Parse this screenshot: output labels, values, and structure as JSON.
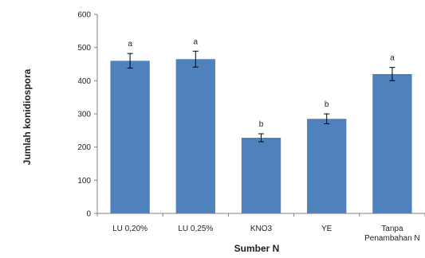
{
  "chart_data": {
    "type": "bar",
    "title": "",
    "xlabel": "Sumber N",
    "ylabel": "Jumlah konidiospora",
    "ylim": [
      0,
      600
    ],
    "yticks": [
      0,
      100,
      200,
      300,
      400,
      500,
      600
    ],
    "categories": [
      "LU 0,20%",
      "LU 0,25%",
      "KNO3",
      "YE",
      "Tanpa Penambahan N"
    ],
    "category_lines": [
      [
        "LU 0,20%"
      ],
      [
        "LU 0,25%"
      ],
      [
        "KNO3"
      ],
      [
        "YE"
      ],
      [
        "Tanpa",
        "Penambahan N"
      ]
    ],
    "values": [
      460,
      465,
      228,
      285,
      420
    ],
    "errors": [
      22,
      24,
      12,
      15,
      20
    ],
    "significance": [
      "a",
      "a",
      "b",
      "b",
      "a"
    ],
    "bar_color": "#4F81BD",
    "grid": false,
    "legend": "none"
  }
}
